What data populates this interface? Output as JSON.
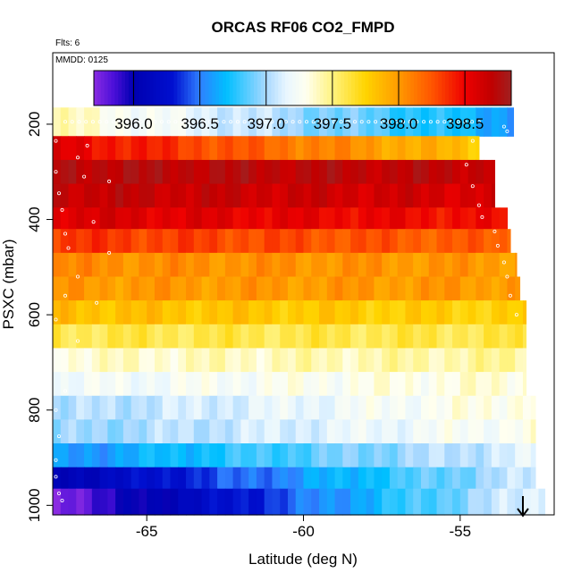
{
  "chart_data": {
    "type": "heatmap",
    "title": "ORCAS RF06 CO2_FMPD",
    "annotations": {
      "flights": "Flts: 6",
      "date": "MMDD: 0125"
    },
    "xlabel": "Latitude (deg N)",
    "ylabel": "PSXC (mbar)",
    "xlim": [
      -68.0,
      -52.0
    ],
    "ylim": [
      1020,
      50
    ],
    "x_ticks": [
      -65,
      -60,
      -55
    ],
    "x_tick_labels": [
      "-65",
      "-60",
      "-55"
    ],
    "y_ticks": [
      200,
      400,
      600,
      800,
      1000
    ],
    "y_tick_labels": [
      "200",
      "400",
      "600",
      "800",
      "1000"
    ],
    "colorbar": {
      "min": 395.7,
      "max": 398.85,
      "ticks": [
        396.0,
        396.5,
        397.0,
        397.5,
        398.0,
        398.5
      ],
      "tick_labels": [
        "396.0",
        "396.5",
        "397.0",
        "397.5",
        "398.0",
        "398.5"
      ],
      "stops": [
        [
          395.7,
          "#8a2be2"
        ],
        [
          395.85,
          "#4b0fd9"
        ],
        [
          396.0,
          "#0000b0"
        ],
        [
          396.3,
          "#0010d0"
        ],
        [
          396.5,
          "#2f7fff"
        ],
        [
          396.7,
          "#00bfff"
        ],
        [
          397.0,
          "#a8d8ff"
        ],
        [
          397.15,
          "#e8f6ff"
        ],
        [
          397.3,
          "#fffff0"
        ],
        [
          397.5,
          "#fff380"
        ],
        [
          397.75,
          "#ffd400"
        ],
        [
          398.0,
          "#ff9a00"
        ],
        [
          398.25,
          "#ff5500"
        ],
        [
          398.5,
          "#ee0000"
        ],
        [
          398.7,
          "#c00000"
        ],
        [
          398.85,
          "#a02020"
        ]
      ]
    },
    "series": [
      {
        "p_top": 165,
        "p_bot": 225,
        "lat_end": -53.3,
        "v_start": 397.4,
        "v_end": 396.6
      },
      {
        "p_top": 225,
        "p_bot": 275,
        "lat_end": -54.4,
        "v_start": 398.55,
        "v_end": 397.8
      },
      {
        "p_top": 275,
        "p_bot": 325,
        "lat_end": -53.9,
        "v_start": 398.75,
        "v_end": 398.7
      },
      {
        "p_top": 325,
        "p_bot": 375,
        "lat_end": -53.9,
        "v_start": 398.7,
        "v_end": 398.6
      },
      {
        "p_top": 375,
        "p_bot": 420,
        "lat_end": -53.5,
        "v_start": 398.6,
        "v_end": 398.45
      },
      {
        "p_top": 420,
        "p_bot": 470,
        "lat_end": -53.4,
        "v_start": 398.35,
        "v_end": 398.2
      },
      {
        "p_top": 470,
        "p_bot": 520,
        "lat_end": -53.2,
        "v_start": 398.05,
        "v_end": 398.0
      },
      {
        "p_top": 520,
        "p_bot": 570,
        "lat_end": -53.1,
        "v_start": 398.0,
        "v_end": 398.0
      },
      {
        "p_top": 570,
        "p_bot": 620,
        "lat_end": -52.9,
        "v_start": 397.85,
        "v_end": 397.75
      },
      {
        "p_top": 620,
        "p_bot": 670,
        "lat_end": -52.9,
        "v_start": 397.6,
        "v_end": 397.6
      },
      {
        "p_top": 670,
        "p_bot": 720,
        "lat_end": -52.9,
        "v_start": 397.35,
        "v_end": 397.45
      },
      {
        "p_top": 720,
        "p_bot": 770,
        "lat_end": -52.9,
        "v_start": 397.2,
        "v_end": 397.35
      },
      {
        "p_top": 770,
        "p_bot": 820,
        "lat_end": -52.6,
        "v_start": 397.0,
        "v_end": 397.35
      },
      {
        "p_top": 820,
        "p_bot": 870,
        "lat_end": -52.6,
        "v_start": 396.95,
        "v_end": 397.3
      },
      {
        "p_top": 870,
        "p_bot": 920,
        "lat_end": -52.6,
        "v_start": 396.55,
        "v_end": 397.15
      },
      {
        "p_top": 920,
        "p_bot": 965,
        "lat_end": -52.6,
        "v_start": 396.05,
        "v_end": 397.1
      },
      {
        "p_top": 965,
        "p_bot": 1020,
        "lat_end": -52.3,
        "v_start": 395.75,
        "v_end": 397.2
      }
    ]
  },
  "colors": {
    "axis": "#000000",
    "marker": "#ffffff",
    "arrow": "#000000"
  }
}
